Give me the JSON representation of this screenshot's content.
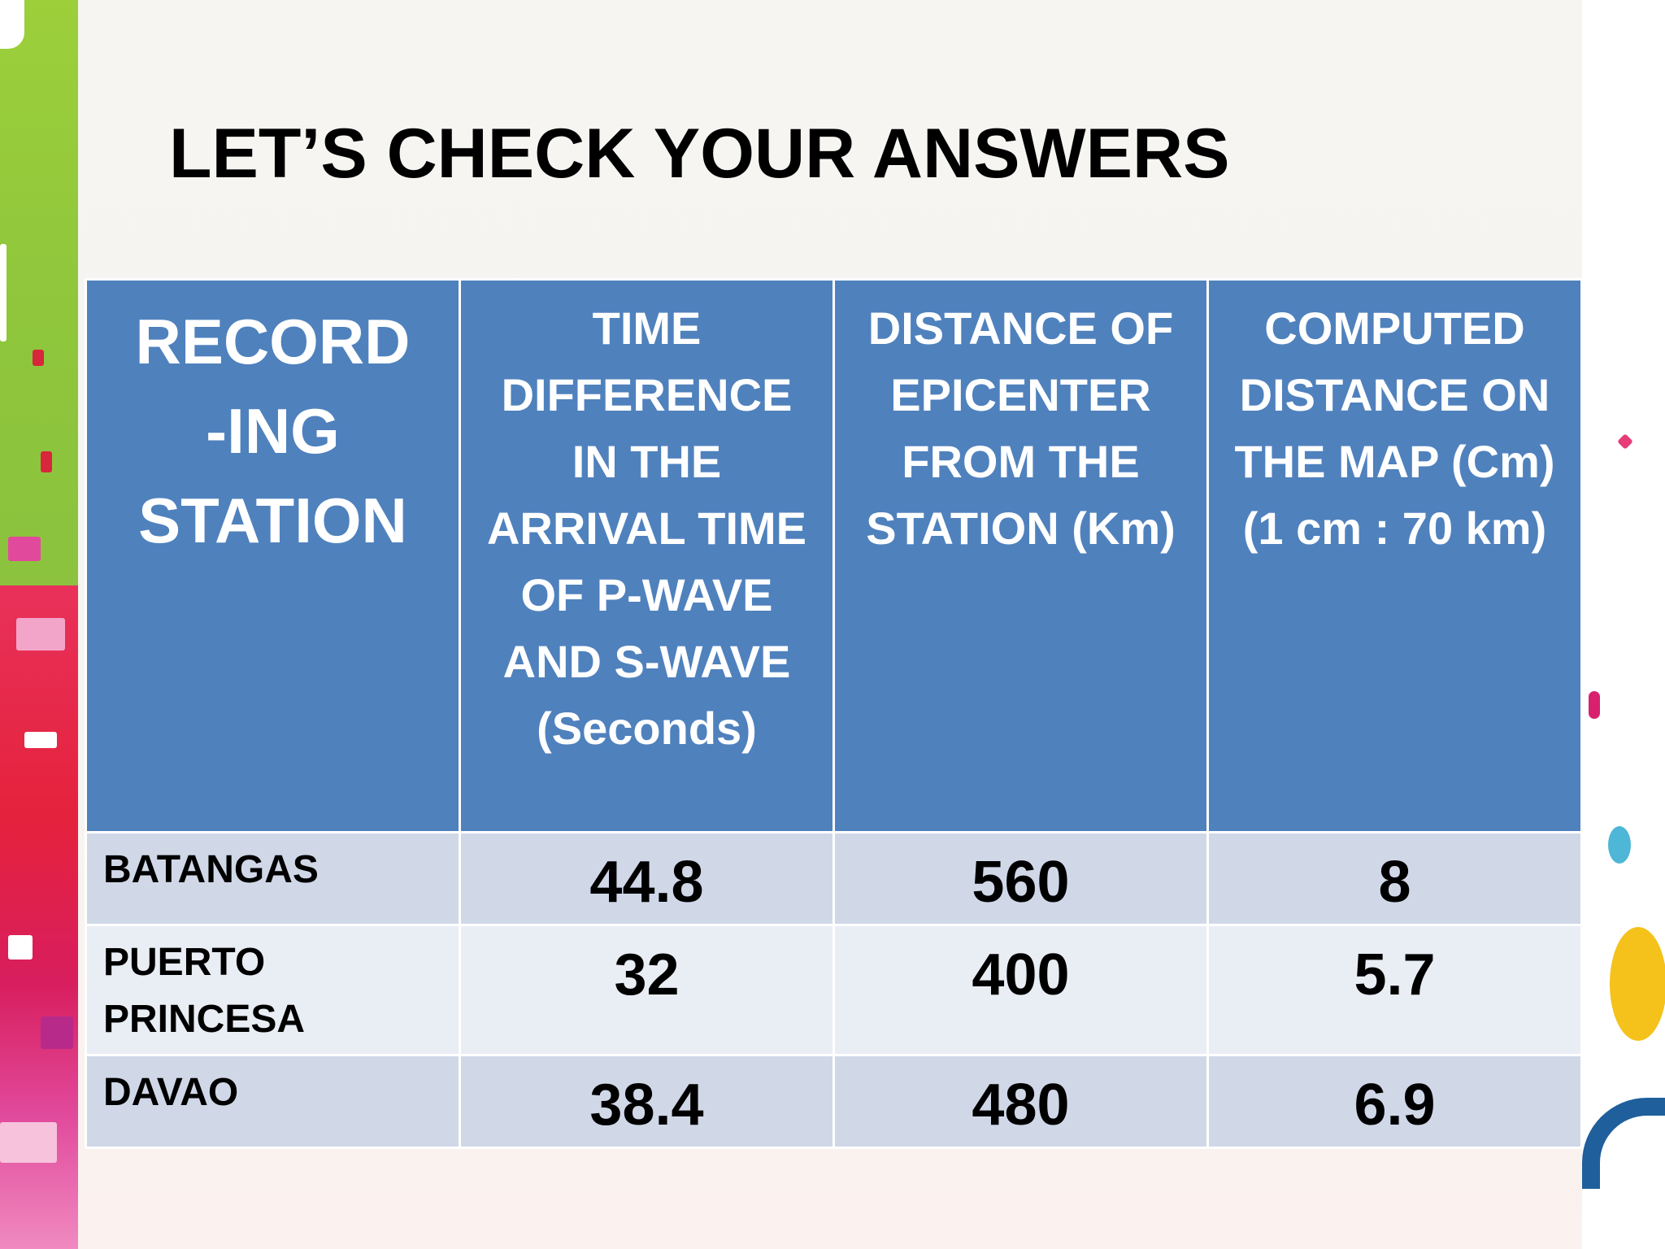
{
  "title": "LET’S CHECK YOUR ANSWERS",
  "table": {
    "headers": [
      "RECORD\n-ING\nSTATION",
      "TIME\nDIFFERENCE\nIN THE\nARRIVAL TIME\nOF P-WAVE\nAND S-WAVE\n(Seconds)",
      "DISTANCE OF\nEPICENTER\nFROM THE\nSTATION (Km)",
      "COMPUTED\nDISTANCE ON\nTHE MAP (Cm)\n(1 cm : 70 km)"
    ],
    "rows": [
      {
        "station": "BATANGAS",
        "time_difference": "44.8",
        "distance_km": "560",
        "map_distance_cm": "8"
      },
      {
        "station": "PUERTO\nPRINCESA",
        "time_difference": "32",
        "distance_km": "400",
        "map_distance_cm": "5.7"
      },
      {
        "station": "DAVAO",
        "time_difference": "38.4",
        "distance_km": "480",
        "map_distance_cm": "6.9"
      }
    ]
  },
  "colors": {
    "header_bg": "#4f81bd",
    "header_text": "#ffffff",
    "row_odd_bg": "#d0d8e8",
    "row_even_bg": "#e9edf4",
    "accent_green": "#8bc23f",
    "accent_red": "#e5223c",
    "accent_pink": "#e14a9c"
  }
}
